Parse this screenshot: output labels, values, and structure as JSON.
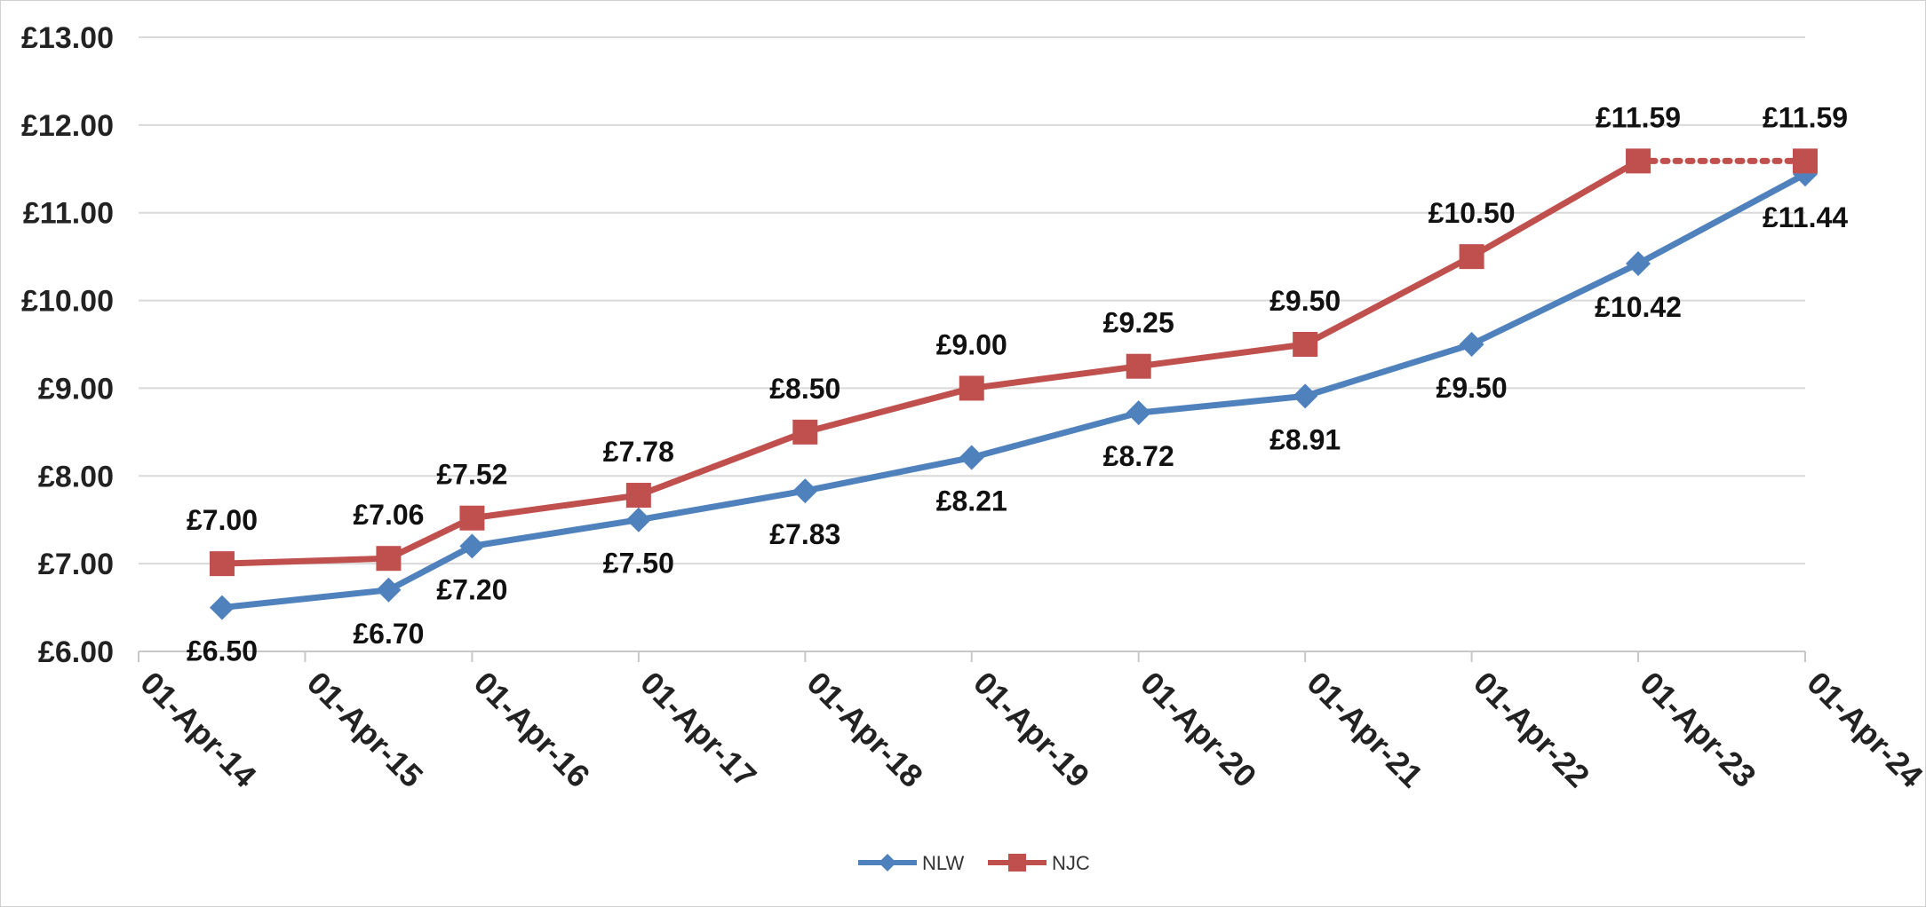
{
  "chart_data": {
    "type": "line",
    "title": "",
    "xlabel": "",
    "ylabel": "",
    "x": [
      "01-Apr-14",
      "01-Apr-15",
      "01-Apr-16",
      "01-Apr-17",
      "01-Apr-18",
      "01-Apr-19",
      "01-Apr-20",
      "01-Apr-21",
      "01-Apr-22",
      "01-Apr-23",
      "01-Apr-24"
    ],
    "y_ticks": [
      "£6.00",
      "£7.00",
      "£8.00",
      "£9.00",
      "£10.00",
      "£11.00",
      "£12.00",
      "£13.00"
    ],
    "ylim": [
      6,
      13
    ],
    "grid": "horizontal",
    "legend_position": "bottom",
    "series": [
      {
        "name": "NLW",
        "color": "#4F81BD",
        "marker": "diamond",
        "points": [
          {
            "x": "2014-10-01",
            "value": 6.5,
            "label": "£6.50"
          },
          {
            "x": "2015-10-01",
            "value": 6.7,
            "label": "£6.70"
          },
          {
            "x": "2016-04-01",
            "value": 7.2,
            "label": "£7.20"
          },
          {
            "x": "2017-04-01",
            "value": 7.5,
            "label": "£7.50"
          },
          {
            "x": "2018-04-01",
            "value": 7.83,
            "label": "£7.83"
          },
          {
            "x": "2019-04-01",
            "value": 8.21,
            "label": "£8.21"
          },
          {
            "x": "2020-04-01",
            "value": 8.72,
            "label": "£8.72"
          },
          {
            "x": "2021-04-01",
            "value": 8.91,
            "label": "£8.91"
          },
          {
            "x": "2022-04-01",
            "value": 9.5,
            "label": "£9.50"
          },
          {
            "x": "2023-04-01",
            "value": 10.42,
            "label": "£10.42"
          },
          {
            "x": "2024-04-01",
            "value": 11.44,
            "label": "£11.44"
          }
        ]
      },
      {
        "name": "NJC",
        "color": "#C0504D",
        "marker": "square",
        "points": [
          {
            "x": "2014-10-01",
            "value": 7.0,
            "label": "£7.00"
          },
          {
            "x": "2015-10-01",
            "value": 7.06,
            "label": "£7.06"
          },
          {
            "x": "2016-04-01",
            "value": 7.52,
            "label": "£7.52"
          },
          {
            "x": "2017-04-01",
            "value": 7.78,
            "label": "£7.78"
          },
          {
            "x": "2018-04-01",
            "value": 8.5,
            "label": "£8.50"
          },
          {
            "x": "2019-04-01",
            "value": 9.0,
            "label": "£9.00"
          },
          {
            "x": "2020-04-01",
            "value": 9.25,
            "label": "£9.25"
          },
          {
            "x": "2021-04-01",
            "value": 9.5,
            "label": "£9.50"
          },
          {
            "x": "2022-04-01",
            "value": 10.5,
            "label": "£10.50"
          },
          {
            "x": "2023-04-01",
            "value": 11.59,
            "label": "£11.59"
          },
          {
            "x": "2024-04-01",
            "value": 11.59,
            "label": "£11.59"
          }
        ],
        "dotted_last_segment": true
      }
    ]
  }
}
